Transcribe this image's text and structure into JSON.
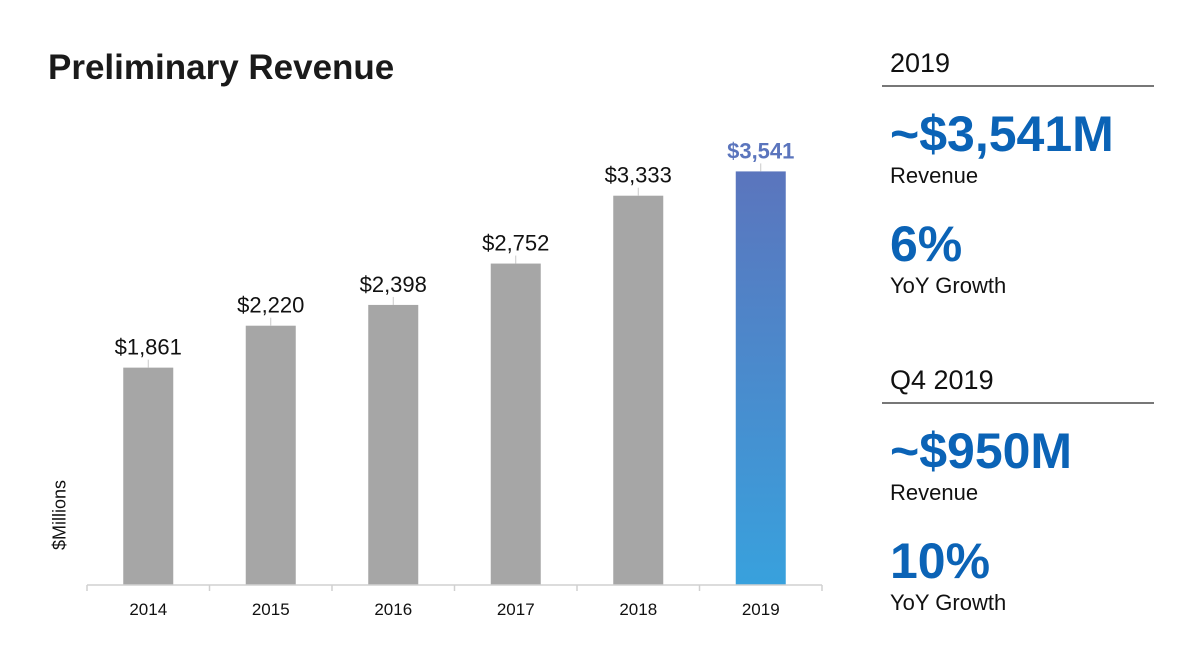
{
  "title": "Preliminary Revenue",
  "y_axis_label": "$Millions",
  "chart_data": {
    "type": "bar",
    "title": "Preliminary Revenue",
    "xlabel": "",
    "ylabel": "$Millions",
    "categories": [
      "2014",
      "2015",
      "2016",
      "2017",
      "2018",
      "2019"
    ],
    "values": [
      1861,
      2220,
      2398,
      2752,
      3333,
      3541
    ],
    "data_labels": [
      "$1,861",
      "$2,220",
      "$2,398",
      "$2,752",
      "$3,333",
      "$3,541"
    ],
    "ylim": [
      0,
      3750
    ],
    "highlight_index": 5,
    "bar_color": "#a6a6a6",
    "highlight_gradient": [
      "#5b75bd",
      "#38a1dd"
    ],
    "highlight_label_color": "#5b75bd"
  },
  "annual": {
    "heading": "2019",
    "revenue_value": "~$3,541M",
    "revenue_label": "Revenue",
    "growth_value": "6%",
    "growth_label": "YoY Growth"
  },
  "quarter": {
    "heading": "Q4 2019",
    "revenue_value": "~$950M",
    "revenue_label": "Revenue",
    "growth_value": "10%",
    "growth_label": "YoY Growth"
  },
  "colors": {
    "accent": "#0b63b6",
    "rule": "#777777"
  }
}
